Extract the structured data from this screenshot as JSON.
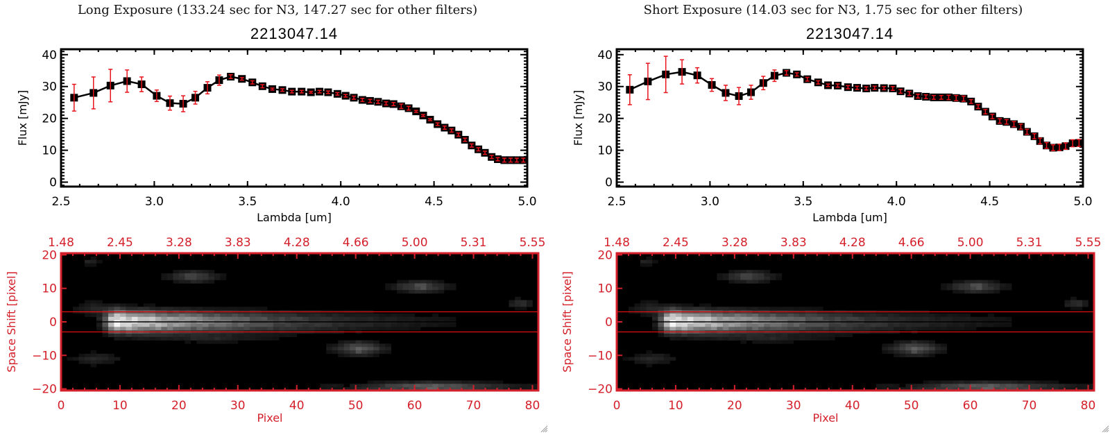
{
  "panels": [
    {
      "exposure_title": "Long Exposure (133.24 sec for N3, 147.27 sec for other filters)",
      "object_id": "2213047.14"
    },
    {
      "exposure_title": "Short Exposure (14.03 sec for N3, 1.75 sec for other filters)",
      "object_id": "2213047.14"
    }
  ],
  "colors": {
    "spectrum_line": "#000000",
    "error_bar": "#e8141c",
    "image_axis": "#d4202a",
    "aperture_line": "#e01010"
  },
  "chart_data": [
    {
      "type": "line",
      "name": "long-exposure-spectrum",
      "title": "2213047.14",
      "xlabel": "Lambda [um]",
      "ylabel": "Flux [mJy]",
      "xlim": [
        2.5,
        5.0
      ],
      "ylim": [
        -1.4,
        41.7
      ],
      "xticks": [
        2.5,
        3.0,
        3.5,
        4.0,
        4.5,
        5.0
      ],
      "xtick_labels": [
        "2.5",
        "3.0",
        "3.5",
        "4.0",
        "4.5",
        "5.0"
      ],
      "yticks": [
        0,
        10,
        20,
        30,
        40
      ],
      "ytick_labels": [
        "0",
        "10",
        "20",
        "30",
        "40"
      ],
      "grid": false,
      "legend": "none",
      "series": [
        {
          "name": "flux",
          "x": [
            2.57,
            2.674,
            2.765,
            2.854,
            2.932,
            3.013,
            3.084,
            3.155,
            3.22,
            3.285,
            3.348,
            3.41,
            3.47,
            3.526,
            3.58,
            3.633,
            3.687,
            3.738,
            3.79,
            3.84,
            3.886,
            3.932,
            3.982,
            4.026,
            4.07,
            4.116,
            4.157,
            4.2,
            4.243,
            4.283,
            4.324,
            4.364,
            4.404,
            4.442,
            4.479,
            4.519,
            4.557,
            4.594,
            4.631,
            4.666,
            4.702,
            4.738,
            4.773,
            4.809,
            4.842,
            4.877,
            4.911,
            4.944,
            4.979
          ],
          "y": [
            26.5,
            28.0,
            30.3,
            31.7,
            30.7,
            27.1,
            24.8,
            24.6,
            26.5,
            29.6,
            32.0,
            33.1,
            32.4,
            31.3,
            30.1,
            29.2,
            28.9,
            28.4,
            28.4,
            28.2,
            28.4,
            28.2,
            27.7,
            27.1,
            26.5,
            25.8,
            25.5,
            25.2,
            24.7,
            24.5,
            23.8,
            23.2,
            22.2,
            20.9,
            19.6,
            18.2,
            17.1,
            16.2,
            14.9,
            13.3,
            11.5,
            10.3,
            9.2,
            7.9,
            7.2,
            6.9,
            6.9,
            6.9,
            6.9
          ],
          "yerr": [
            4.2,
            5.0,
            5.1,
            3.5,
            2.3,
            1.8,
            2.2,
            2.5,
            2.0,
            1.9,
            1.6,
            0.6,
            0.4,
            0.5,
            0.5,
            0.3,
            0.4,
            0.4,
            0.4,
            0.3,
            0.4,
            0.4,
            0.4,
            0.4,
            0.5,
            0.5,
            0.5,
            0.5,
            0.5,
            0.5,
            0.7,
            0.6,
            0.3,
            0.3,
            0.3,
            0.4,
            0.5,
            0.5,
            0.5,
            0.5,
            0.5,
            0.5,
            0.5,
            0.5,
            0.5,
            0.6,
            0.6,
            0.6,
            0.6
          ]
        }
      ]
    },
    {
      "type": "heatmap",
      "name": "long-exposure-image",
      "xlabel": "Pixel",
      "ylabel": "Space Shift [pixel]",
      "xlim": [
        0,
        81
      ],
      "ylim": [
        -21,
        21
      ],
      "xticks": [
        0,
        10,
        20,
        30,
        40,
        50,
        60,
        70,
        80
      ],
      "xtick_labels": [
        "0",
        "10",
        "20",
        "30",
        "40",
        "50",
        "60",
        "70",
        "80"
      ],
      "top_xticks": [
        0,
        10,
        20,
        30,
        40,
        50,
        60,
        70,
        80
      ],
      "top_xtick_labels": [
        "1.48",
        "2.45",
        "3.28",
        "3.83",
        "4.28",
        "4.66",
        "5.00",
        "5.31",
        "5.55"
      ],
      "yticks": [
        -20,
        -10,
        0,
        10,
        20
      ],
      "ytick_labels": [
        "-20",
        "-10",
        "0",
        "10",
        "20"
      ],
      "aperture": [
        -3,
        3
      ],
      "center_line": 0,
      "colormap": "grayscale",
      "features": [
        {
          "label": "source-trace",
          "x0": 5,
          "x1": 66,
          "y": 0,
          "peak_x": 9,
          "peak": 1.0,
          "sigma_y": 2.2,
          "decay": 22
        },
        {
          "label": "left-halo",
          "x0": 0,
          "x1": 10,
          "y": 4,
          "h": 6,
          "level": 0.15
        },
        {
          "label": "left-lower",
          "x0": 0,
          "x1": 11,
          "y": -11,
          "h": 4,
          "level": 0.18
        },
        {
          "label": "upper-knot",
          "x0": 17,
          "x1": 27,
          "y": 13.5,
          "h": 3,
          "level": 0.35
        },
        {
          "label": "upper-speck",
          "x0": 3,
          "x1": 6,
          "y": 18,
          "h": 2,
          "level": 0.15
        },
        {
          "label": "mid-upper-knot",
          "x0": 55,
          "x1": 66,
          "y": 10.5,
          "h": 3,
          "level": 0.38
        },
        {
          "label": "mid-lower-knot",
          "x0": 45,
          "x1": 55,
          "y": -8,
          "h": 4,
          "level": 0.42
        },
        {
          "label": "right-speck",
          "x0": 75,
          "x1": 80,
          "y": 5.5,
          "h": 2,
          "level": 0.25
        },
        {
          "label": "bottom-band",
          "x0": 44,
          "x1": 81,
          "y": -19.5,
          "h": 2.5,
          "level": 0.45
        },
        {
          "label": "lower-trace-wing",
          "x0": 12,
          "x1": 39,
          "y": -5,
          "h": 2,
          "level": 0.12
        }
      ],
      "dead_pixel": {
        "x": 48,
        "y": -19
      }
    },
    {
      "type": "line",
      "name": "short-exposure-spectrum",
      "title": "2213047.14",
      "xlabel": "Lambda [um]",
      "ylabel": "Flux [mJy]",
      "xlim": [
        2.5,
        5.0
      ],
      "ylim": [
        -1.4,
        41.7
      ],
      "xticks": [
        2.5,
        3.0,
        3.5,
        4.0,
        4.5,
        5.0
      ],
      "xtick_labels": [
        "2.5",
        "3.0",
        "3.5",
        "4.0",
        "4.5",
        "5.0"
      ],
      "yticks": [
        0,
        10,
        20,
        30,
        40
      ],
      "ytick_labels": [
        "0",
        "10",
        "20",
        "30",
        "40"
      ],
      "grid": false,
      "legend": "none",
      "series": [
        {
          "name": "flux",
          "x": [
            2.57,
            2.667,
            2.763,
            2.85,
            2.932,
            3.01,
            3.084,
            3.155,
            3.22,
            3.286,
            3.346,
            3.41,
            3.466,
            3.522,
            3.58,
            3.633,
            3.685,
            3.74,
            3.789,
            3.838,
            3.883,
            3.933,
            3.98,
            4.022,
            4.069,
            4.115,
            4.158,
            4.2,
            4.24,
            4.28,
            4.32,
            4.36,
            4.4,
            4.438,
            4.477,
            4.514,
            4.554,
            4.59,
            4.63,
            4.667,
            4.7,
            4.74,
            4.77,
            4.805,
            4.84,
            4.874,
            4.907,
            4.945,
            4.979
          ],
          "y": [
            29.0,
            31.6,
            33.8,
            34.6,
            33.5,
            30.5,
            28.0,
            27.0,
            28.2,
            31.1,
            33.4,
            34.3,
            33.8,
            32.3,
            31.3,
            30.4,
            30.3,
            29.8,
            29.6,
            29.4,
            29.6,
            29.5,
            29.4,
            28.5,
            27.8,
            27.0,
            26.8,
            26.6,
            26.6,
            26.6,
            26.4,
            26.2,
            25.3,
            23.7,
            22.1,
            20.6,
            19.2,
            18.9,
            18.2,
            17.4,
            15.8,
            14.4,
            12.9,
            11.5,
            10.8,
            10.9,
            11.3,
            12.2,
            12.3
          ],
          "yerr": [
            4.7,
            5.7,
            5.7,
            3.8,
            2.4,
            2.0,
            2.4,
            2.7,
            2.2,
            2.1,
            1.8,
            0.7,
            0.5,
            0.6,
            0.5,
            0.4,
            0.5,
            0.5,
            0.5,
            0.5,
            0.5,
            0.5,
            0.6,
            0.6,
            0.6,
            0.6,
            0.6,
            0.6,
            0.6,
            0.7,
            0.8,
            0.8,
            0.6,
            0.6,
            0.7,
            0.7,
            0.7,
            0.7,
            0.8,
            0.8,
            0.8,
            0.8,
            0.9,
            0.9,
            0.9,
            1.0,
            1.0,
            1.1,
            1.1
          ]
        }
      ]
    },
    {
      "type": "heatmap",
      "name": "short-exposure-image",
      "xlabel": "Pixel",
      "ylabel": "Space Shift [pixel]",
      "xlim": [
        0,
        81
      ],
      "ylim": [
        -21,
        21
      ],
      "xticks": [
        0,
        10,
        20,
        30,
        40,
        50,
        60,
        70,
        80
      ],
      "xtick_labels": [
        "0",
        "10",
        "20",
        "30",
        "40",
        "50",
        "60",
        "70",
        "80"
      ],
      "top_xticks": [
        0,
        10,
        20,
        30,
        40,
        50,
        60,
        70,
        80
      ],
      "top_xtick_labels": [
        "1.48",
        "2.45",
        "3.28",
        "3.83",
        "4.28",
        "4.66",
        "5.00",
        "5.31",
        "5.55"
      ],
      "yticks": [
        -20,
        -10,
        0,
        10,
        20
      ],
      "ytick_labels": [
        "-20",
        "-10",
        "0",
        "10",
        "20"
      ],
      "aperture": [
        -3,
        3
      ],
      "center_line": 0,
      "colormap": "grayscale",
      "features": [
        {
          "label": "source-trace",
          "x0": 5,
          "x1": 66,
          "y": 0,
          "peak_x": 9,
          "peak": 1.0,
          "sigma_y": 2.2,
          "decay": 22
        },
        {
          "label": "left-halo",
          "x0": 0,
          "x1": 10,
          "y": 4,
          "h": 6,
          "level": 0.15
        },
        {
          "label": "left-lower",
          "x0": 0,
          "x1": 11,
          "y": -11,
          "h": 4,
          "level": 0.18
        },
        {
          "label": "upper-knot",
          "x0": 17,
          "x1": 27,
          "y": 13.5,
          "h": 3,
          "level": 0.35
        },
        {
          "label": "upper-speck",
          "x0": 3,
          "x1": 6,
          "y": 18,
          "h": 2,
          "level": 0.15
        },
        {
          "label": "mid-upper-knot",
          "x0": 55,
          "x1": 66,
          "y": 10.5,
          "h": 3,
          "level": 0.38
        },
        {
          "label": "mid-lower-knot",
          "x0": 45,
          "x1": 55,
          "y": -8,
          "h": 4,
          "level": 0.42
        },
        {
          "label": "right-speck",
          "x0": 75,
          "x1": 80,
          "y": 5.5,
          "h": 2,
          "level": 0.25
        },
        {
          "label": "bottom-band",
          "x0": 44,
          "x1": 81,
          "y": -19.5,
          "h": 2.5,
          "level": 0.45
        },
        {
          "label": "lower-trace-wing",
          "x0": 12,
          "x1": 39,
          "y": -5,
          "h": 2,
          "level": 0.12
        }
      ],
      "dead_pixel": {
        "x": 48,
        "y": -19
      }
    }
  ]
}
